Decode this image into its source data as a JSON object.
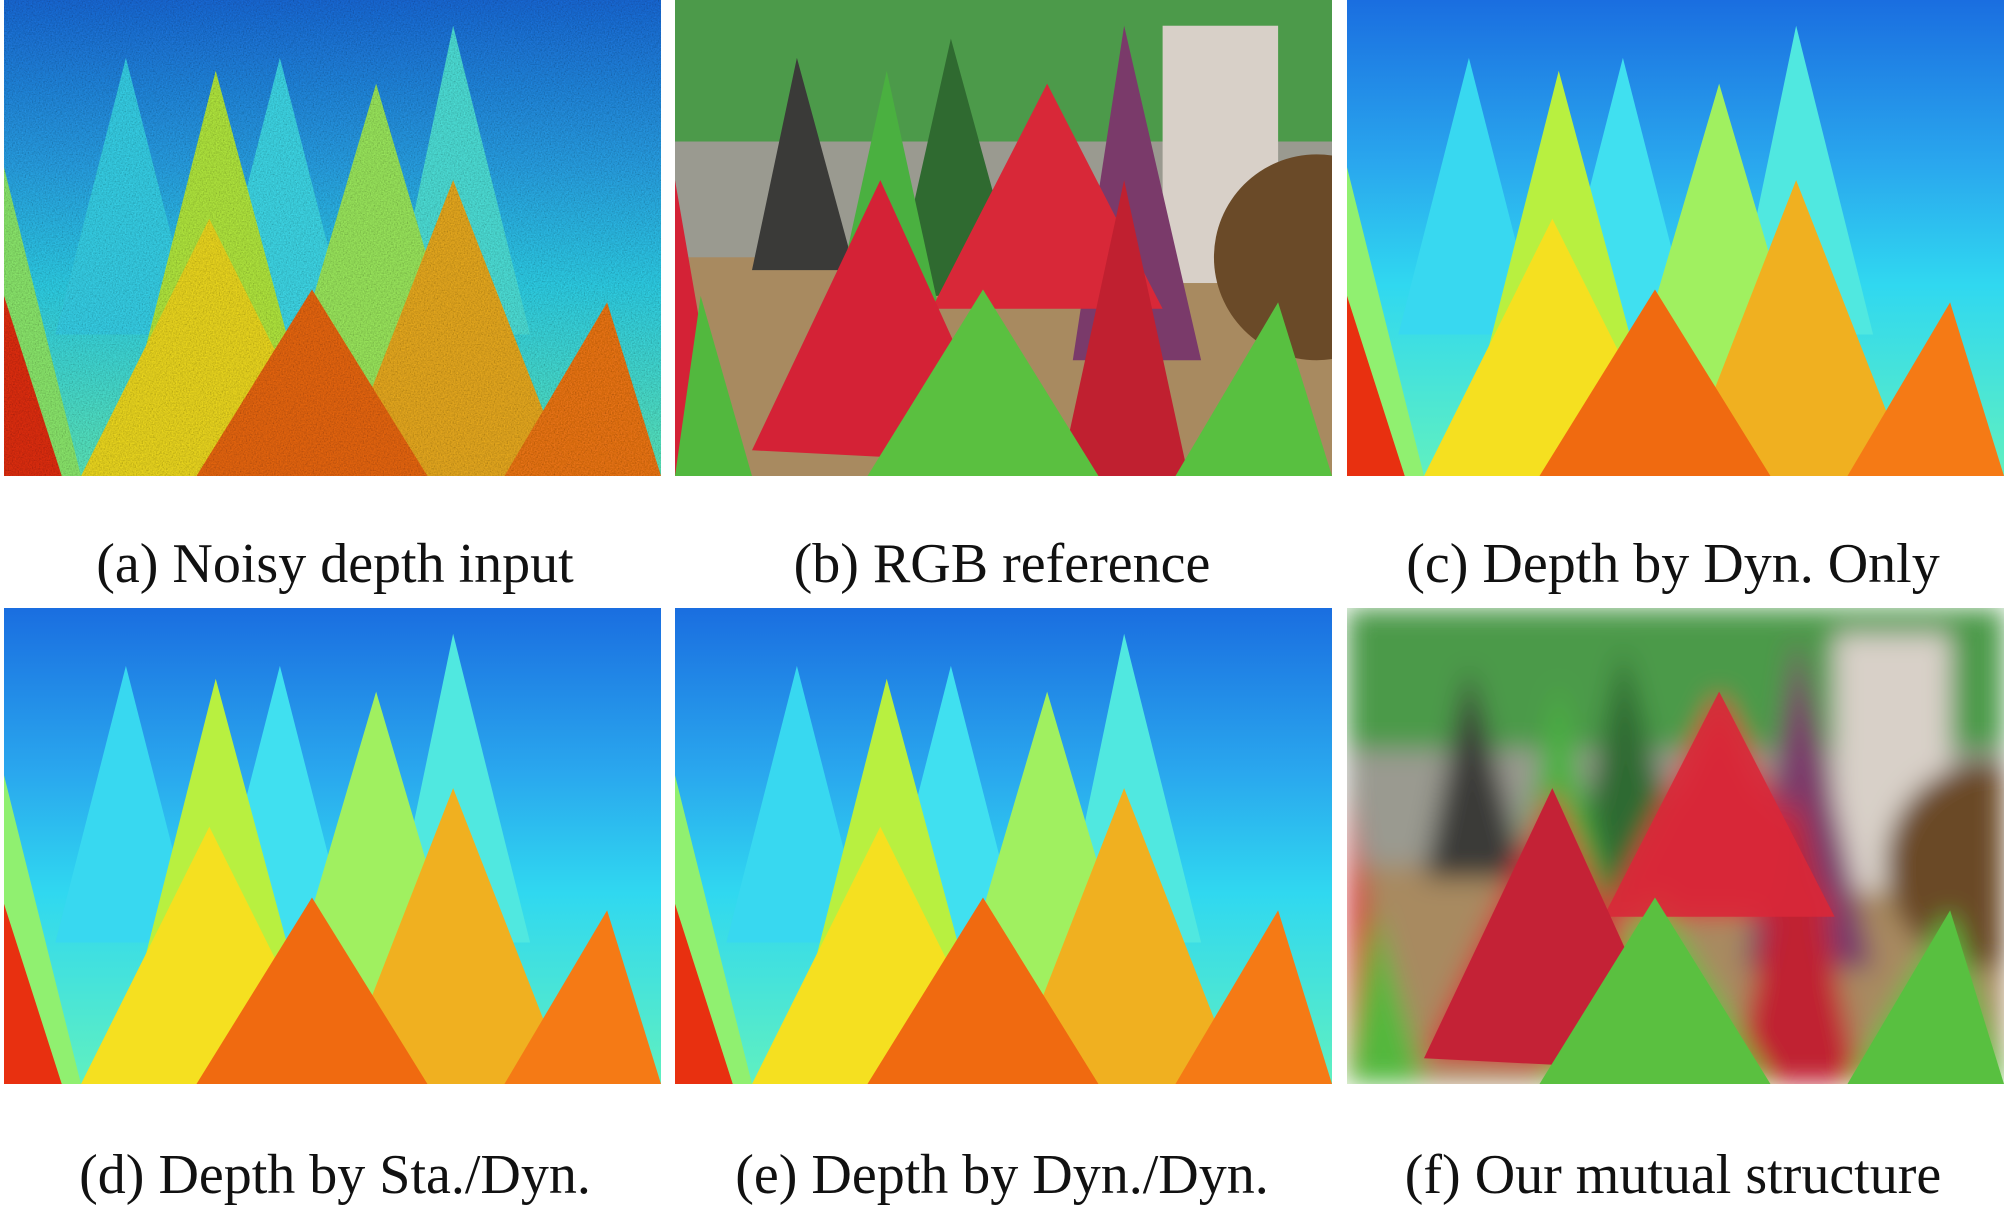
{
  "panels": [
    {
      "caption": "(a) Noisy depth input"
    },
    {
      "caption": "(b) RGB reference"
    },
    {
      "caption": "(c) Depth by Dyn. Only"
    },
    {
      "caption": "(d) Depth by Sta./Dyn."
    },
    {
      "caption": "(e) Depth by Dyn./Dyn."
    },
    {
      "caption": "(f) Our mutual structure"
    }
  ]
}
